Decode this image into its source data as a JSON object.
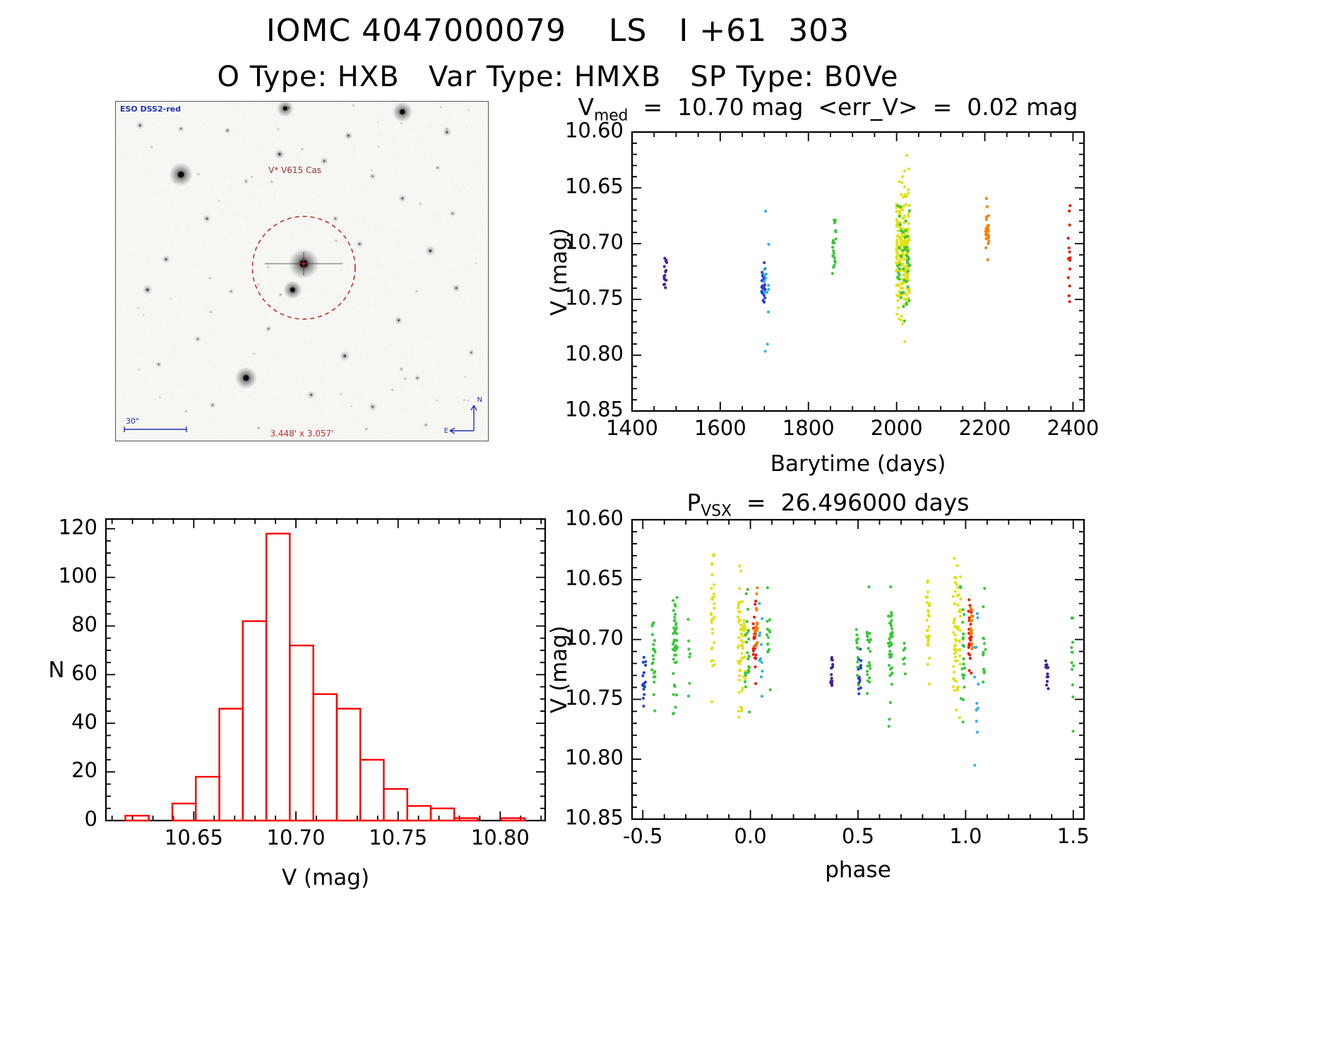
{
  "page": {
    "title": "IOMC 4047000079    LS   I +61  303",
    "subtitle": "O Type: HXB   Var Type: HMXB   SP Type: B0Ve"
  },
  "finding_chart": {
    "survey_label": "ESO DSS2-red",
    "star_label": "V* V615 Cas",
    "scale_label": "30\"",
    "fov_label": "3.448' x 3.057'",
    "compass_north_label": "N",
    "compass_east_label": "E",
    "marker_color": "#bb2222",
    "annotation_color": "#2233bb"
  },
  "palette": {
    "purple": "#46209a",
    "navy": "#2b3fd0",
    "cyan": "#2fb3e6",
    "green": "#37c837",
    "yellow": "#dfe214",
    "orange": "#ff7d00",
    "red": "#ee1a05"
  },
  "chart_data": [
    {
      "id": "lightcurve",
      "type": "scatter",
      "title_pre": "V",
      "title_sub": "med",
      "title_post": "  =  10.70 mag  <err_V>  =  0.02 mag",
      "xlabel": "Barytime  (days)",
      "ylabel": "V  (mag)",
      "xlim": [
        1400,
        2425
      ],
      "ylim": [
        10.6,
        10.85
      ],
      "invert_y": true,
      "xticks": {
        "values": [
          1400,
          1600,
          1800,
          2000,
          2200,
          2400
        ],
        "labels": [
          "1400",
          "1600",
          "1800",
          "2000",
          "2200",
          "2400"
        ],
        "minor_step": 50
      },
      "yticks": {
        "values": [
          10.6,
          10.65,
          10.7,
          10.75,
          10.8,
          10.85
        ],
        "labels": [
          "10.60",
          "10.65",
          "10.70",
          "10.75",
          "10.80",
          "10.85"
        ],
        "minor_step": 0.01
      },
      "clusters": [
        {
          "c": "purple",
          "x": 1476,
          "xs": 4,
          "y": 10.727,
          "ys": 0.009,
          "n": 15,
          "yclip": [
            10.711,
            10.743
          ]
        },
        {
          "c": "navy",
          "x": 1698,
          "xs": 4,
          "y": 10.733,
          "ys": 0.015,
          "n": 30,
          "yclip": [
            10.706,
            10.768
          ]
        },
        {
          "c": "cyan",
          "x": 1705,
          "xs": 5,
          "y": 10.735,
          "ys": 0.045,
          "n": 14,
          "yclip": [
            10.662,
            10.812
          ]
        },
        {
          "c": "green",
          "x": 1859,
          "xs": 5,
          "y": 10.701,
          "ys": 0.014,
          "n": 22,
          "yclip": [
            10.678,
            10.733
          ]
        },
        {
          "c": "yellow",
          "x": 2014,
          "xs": 15,
          "y": 10.706,
          "ys": 0.03,
          "n": 230,
          "yclip": [
            10.616,
            10.79
          ]
        },
        {
          "c": "green",
          "x": 2016,
          "xs": 14,
          "y": 10.72,
          "ys": 0.029,
          "n": 48,
          "yclip": [
            10.64,
            10.786
          ]
        },
        {
          "c": "orange",
          "x": 2206,
          "xs": 4,
          "y": 10.688,
          "ys": 0.012,
          "n": 30,
          "yclip": [
            10.654,
            10.726
          ]
        },
        {
          "c": "red",
          "x": 2392,
          "xs": 3,
          "y": 10.712,
          "ys": 0.024,
          "n": 15,
          "yclip": [
            10.663,
            10.757
          ]
        }
      ]
    },
    {
      "id": "histogram",
      "type": "bar",
      "xlabel": "V  (mag)",
      "ylabel": "N",
      "xlim": [
        10.607,
        10.822
      ],
      "ylim": [
        0,
        124
      ],
      "bin_start": 10.6165,
      "bin_width": 0.0115,
      "counts": [
        2,
        0,
        7,
        18,
        46,
        82,
        118,
        72,
        52,
        46,
        25,
        13,
        6,
        5,
        1,
        0,
        1
      ],
      "color": "#ff0000",
      "xticks": {
        "values": [
          10.65,
          10.7,
          10.75,
          10.8
        ],
        "labels": [
          "10.65",
          "10.70",
          "10.75",
          "10.80"
        ],
        "minor_step": 0.01
      },
      "yticks": {
        "values": [
          0,
          20,
          40,
          60,
          80,
          100,
          120
        ],
        "labels": [
          "0",
          "20",
          "40",
          "60",
          "80",
          "100",
          "120"
        ],
        "minor_step": 5
      }
    },
    {
      "id": "phase",
      "type": "scatter",
      "title_pre": "P",
      "title_sub": "VSX",
      "title_post": "  =  26.496000 days",
      "xlabel": "phase",
      "ylabel": "V  (mag)",
      "xlim": [
        -0.55,
        1.55
      ],
      "ylim": [
        10.6,
        10.85
      ],
      "invert_y": true,
      "replicate": [
        0,
        1
      ],
      "xticks": {
        "values": [
          -0.5,
          0.0,
          0.5,
          1.0,
          1.5
        ],
        "labels": [
          "-0.5",
          "0.0",
          "0.5",
          "1.0",
          "1.5"
        ],
        "minor_step": 0.1
      },
      "yticks": {
        "values": [
          10.6,
          10.65,
          10.7,
          10.75,
          10.8,
          10.85
        ],
        "labels": [
          "10.60",
          "10.65",
          "10.70",
          "10.75",
          "10.80",
          "10.85"
        ],
        "minor_step": 0.01
      },
      "clusters": [
        {
          "c": "navy",
          "x": -0.493,
          "xs": 0.008,
          "y": 10.731,
          "ys": 0.013,
          "n": 16,
          "yclip": [
            10.705,
            10.758
          ]
        },
        {
          "c": "green",
          "x": -0.45,
          "xs": 0.008,
          "y": 10.718,
          "ys": 0.028,
          "n": 22,
          "yclip": [
            10.652,
            10.783
          ]
        },
        {
          "c": "green",
          "x": -0.35,
          "xs": 0.01,
          "y": 10.703,
          "ys": 0.024,
          "n": 42,
          "yclip": [
            10.655,
            10.782
          ]
        },
        {
          "c": "green",
          "x": -0.285,
          "xs": 0.006,
          "y": 10.71,
          "ys": 0.018,
          "n": 7,
          "yclip": [
            10.66,
            10.77
          ]
        },
        {
          "c": "yellow",
          "x": -0.175,
          "xs": 0.008,
          "y": 10.683,
          "ys": 0.026,
          "n": 32,
          "yclip": [
            10.617,
            10.77
          ]
        },
        {
          "c": "yellow",
          "x": -0.04,
          "xs": 0.018,
          "y": 10.7,
          "ys": 0.031,
          "n": 65,
          "yclip": [
            10.623,
            10.792
          ]
        },
        {
          "c": "green",
          "x": -0.015,
          "xs": 0.012,
          "y": 10.712,
          "ys": 0.028,
          "n": 22,
          "yclip": [
            10.648,
            10.81
          ]
        },
        {
          "c": "red",
          "x": 0.02,
          "xs": 0.007,
          "y": 10.696,
          "ys": 0.015,
          "n": 26,
          "yclip": [
            10.66,
            10.78
          ]
        },
        {
          "c": "orange",
          "x": 0.028,
          "xs": 0.006,
          "y": 10.688,
          "ys": 0.012,
          "n": 18,
          "yclip": [
            10.655,
            10.725
          ]
        },
        {
          "c": "cyan",
          "x": 0.05,
          "xs": 0.009,
          "y": 10.733,
          "ys": 0.042,
          "n": 12,
          "yclip": [
            10.658,
            10.812
          ]
        },
        {
          "c": "green",
          "x": 0.085,
          "xs": 0.008,
          "y": 10.7,
          "ys": 0.02,
          "n": 14,
          "yclip": [
            10.655,
            10.76
          ]
        },
        {
          "c": "purple",
          "x": 0.378,
          "xs": 0.006,
          "y": 10.728,
          "ys": 0.009,
          "n": 14,
          "yclip": [
            10.712,
            10.745
          ]
        },
        {
          "c": "green",
          "x": 0.497,
          "xs": 0.006,
          "y": 10.715,
          "ys": 0.025,
          "n": 12,
          "yclip": [
            10.66,
            10.78
          ]
        }
      ]
    }
  ]
}
